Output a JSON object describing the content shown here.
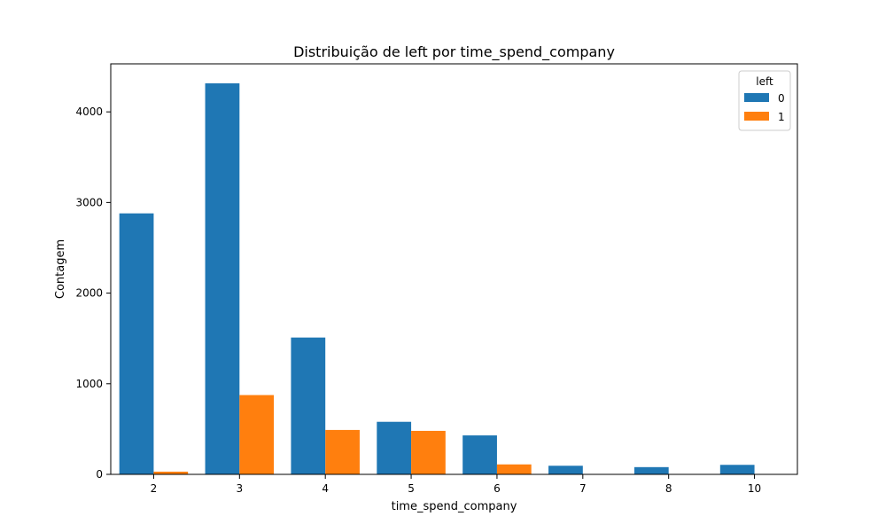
{
  "chart_data": {
    "type": "bar",
    "title": "Distribuição de left por time_spend_company",
    "xlabel": "time_spend_company",
    "ylabel": "Contagem",
    "categories": [
      "2",
      "3",
      "4",
      "5",
      "6",
      "7",
      "8",
      "10"
    ],
    "series": [
      {
        "name": "0",
        "color": "#1f77b4",
        "values": [
          2880,
          4315,
          1510,
          580,
          430,
          95,
          80,
          105
        ]
      },
      {
        "name": "1",
        "color": "#ff7f0e",
        "values": [
          30,
          875,
          490,
          480,
          110,
          0,
          0,
          0
        ]
      }
    ],
    "ylim": [
      0,
      4530
    ],
    "yticks": [
      0,
      1000,
      2000,
      3000,
      4000
    ],
    "legend": {
      "title": "left",
      "placement": "top-right"
    },
    "grid": false
  }
}
